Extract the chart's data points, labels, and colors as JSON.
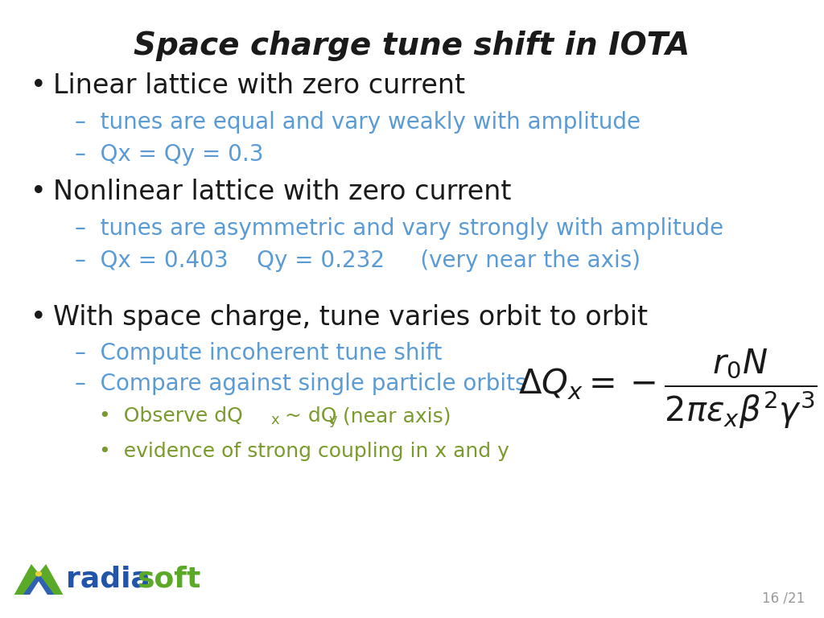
{
  "title": "Space charge tune shift in IOTA",
  "title_fontsize": 28,
  "bg_color": "#ffffff",
  "black": "#1a1a1a",
  "blue": "#5B9BD5",
  "green": "#7AB648",
  "dark_green": "#6aaa2a",
  "bullet1_text": "Linear lattice with zero current",
  "bullet1_sub1": "–  tunes are equal and vary weakly with amplitude",
  "bullet1_sub2": "–  Qx = Qy = 0.3",
  "bullet2_text": "Nonlinear lattice with zero current",
  "bullet2_sub1": "–  tunes are asymmetric and vary strongly with amplitude",
  "bullet2_sub2": "–  Qx = 0.403    Qy = 0.232     (very near the axis)",
  "bullet3_text": "With space charge, tune varies orbit to orbit",
  "bullet3_sub1": "–  Compute incoherent tune shift",
  "bullet3_sub2": "–  Compare against single particle orbits",
  "bullet3_sub4": "•  evidence of strong coupling in x and y",
  "page_num": "16 /21",
  "formula": "$\\Delta Q_x = -\\dfrac{r_0 N}{2\\pi\\epsilon_x\\beta^2\\gamma^3}$",
  "logo_blue": "#3666b0",
  "logo_green": "#5aaa28",
  "logo_text_blue": "#2255aa",
  "logo_text_green": "#5aaa28"
}
